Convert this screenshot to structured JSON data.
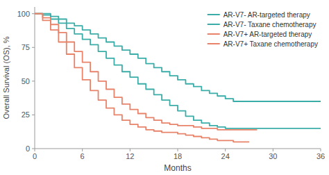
{
  "chart_data": {
    "type": "step",
    "xlabel": "Months",
    "ylabel": "Overall Survival (OS), %",
    "xlim": [
      0,
      36
    ],
    "ylim": [
      0,
      105
    ],
    "xticks": [
      0,
      6,
      12,
      18,
      24,
      30,
      36
    ],
    "yticks": [
      0,
      25,
      50,
      75,
      100
    ],
    "grid": false,
    "legend": "upper right",
    "series": [
      {
        "name": "AR-V7- AR-targeted therapy",
        "color": "#3aada8",
        "x": [
          0,
          1,
          2,
          3,
          4,
          5,
          6,
          7,
          8,
          9,
          10,
          11,
          12,
          13,
          14,
          15,
          16,
          17,
          18,
          19,
          20,
          21,
          22,
          23,
          24,
          25,
          26,
          27,
          36
        ],
        "values": [
          100,
          100,
          98,
          96,
          93,
          91,
          88,
          85,
          82,
          79,
          76,
          73,
          70,
          67,
          63,
          60,
          57,
          54,
          51,
          48,
          46,
          43,
          41,
          39,
          37,
          35,
          35,
          35,
          35
        ]
      },
      {
        "name": "AR-V7- Taxane chemotherapy",
        "color": "#3aada8",
        "x": [
          0,
          1,
          2,
          3,
          4,
          5,
          6,
          7,
          8,
          9,
          10,
          11,
          12,
          13,
          14,
          15,
          16,
          17,
          18,
          19,
          20,
          21,
          22,
          23,
          24,
          25,
          26,
          27,
          36
        ],
        "values": [
          100,
          99,
          96,
          93,
          89,
          85,
          81,
          77,
          72,
          67,
          62,
          57,
          53,
          48,
          44,
          40,
          36,
          32,
          28,
          24,
          21,
          19,
          17,
          16,
          15,
          15,
          15,
          15,
          15
        ]
      },
      {
        "name": "AR-V7+ AR-targeted therapy",
        "color": "#e8836a",
        "x": [
          0,
          1,
          2,
          3,
          4,
          5,
          6,
          7,
          8,
          9,
          10,
          11,
          12,
          13,
          14,
          15,
          16,
          17,
          18,
          19,
          20,
          21,
          22,
          23,
          24,
          25,
          28
        ],
        "values": [
          100,
          97,
          92,
          86,
          79,
          72,
          64,
          57,
          50,
          44,
          38,
          33,
          29,
          26,
          23,
          21,
          19,
          18,
          17,
          17,
          16,
          15,
          15,
          14,
          14,
          14,
          14
        ]
      },
      {
        "name": "AR-V7+ Taxane chemotherapy",
        "color": "#e8836a",
        "x": [
          0,
          1,
          2,
          3,
          4,
          5,
          6,
          7,
          8,
          9,
          10,
          11,
          12,
          13,
          14,
          15,
          16,
          17,
          18,
          19,
          20,
          21,
          22,
          23,
          24,
          25,
          26,
          27
        ],
        "values": [
          100,
          95,
          88,
          79,
          70,
          60,
          51,
          43,
          36,
          30,
          25,
          21,
          18,
          16,
          14,
          13,
          12,
          12,
          11,
          10,
          9,
          8,
          7,
          6,
          6,
          5,
          5,
          5
        ]
      }
    ]
  }
}
